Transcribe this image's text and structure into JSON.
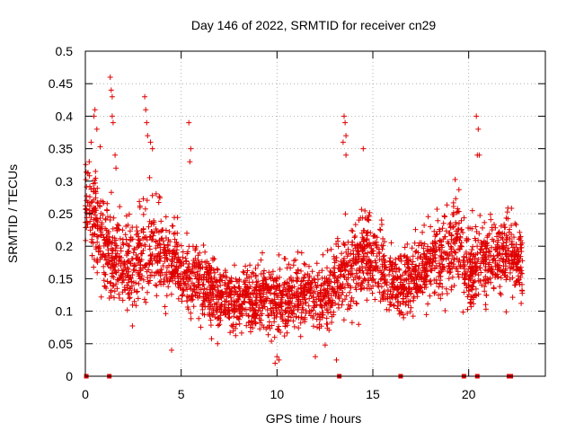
{
  "chart_data": {
    "type": "scatter",
    "title": "Day 146 of 2022, SRMTID for receiver cn29",
    "xlabel": "GPS time / hours",
    "ylabel": "SRMTID / TECUs",
    "xlim": [
      0,
      24
    ],
    "ylim": [
      0,
      0.5
    ],
    "xticks": [
      0,
      5,
      10,
      15,
      20
    ],
    "xtick_labels": [
      "0",
      "5",
      "10",
      "15",
      "20"
    ],
    "yticks": [
      0,
      0.05,
      0.1,
      0.15,
      0.2,
      0.25,
      0.3,
      0.35,
      0.4,
      0.45,
      0.5
    ],
    "ytick_labels": [
      "0",
      "0.05",
      "0.1",
      "0.15",
      "0.2",
      "0.25",
      "0.3",
      "0.35",
      "0.4",
      "0.45",
      "0.5"
    ],
    "grid": true,
    "marker_color": "#e00000",
    "series": [
      {
        "name": "SRMTID",
        "marker": "plus",
        "approx_point_count": 3000,
        "profile_x": [
          0.0,
          0.5,
          1.0,
          1.5,
          2.0,
          2.5,
          3.0,
          3.5,
          4.0,
          4.5,
          5.0,
          5.5,
          6.0,
          6.5,
          7.0,
          7.5,
          8.0,
          8.5,
          9.0,
          9.5,
          10.0,
          10.5,
          11.0,
          11.5,
          12.0,
          12.5,
          13.0,
          13.5,
          14.0,
          14.5,
          15.0,
          15.5,
          16.0,
          16.5,
          17.0,
          17.5,
          18.0,
          18.5,
          19.0,
          19.5,
          20.0,
          20.5,
          21.0,
          21.5,
          22.0,
          22.5,
          22.8
        ],
        "profile_center": [
          0.25,
          0.24,
          0.2,
          0.18,
          0.17,
          0.16,
          0.19,
          0.2,
          0.18,
          0.17,
          0.16,
          0.15,
          0.14,
          0.13,
          0.12,
          0.12,
          0.115,
          0.115,
          0.12,
          0.12,
          0.115,
          0.12,
          0.125,
          0.125,
          0.12,
          0.12,
          0.14,
          0.16,
          0.17,
          0.18,
          0.18,
          0.16,
          0.14,
          0.14,
          0.15,
          0.16,
          0.17,
          0.18,
          0.19,
          0.2,
          0.16,
          0.17,
          0.18,
          0.18,
          0.19,
          0.18,
          0.17
        ],
        "profile_spread": [
          0.07,
          0.07,
          0.07,
          0.06,
          0.06,
          0.06,
          0.07,
          0.07,
          0.06,
          0.05,
          0.05,
          0.05,
          0.045,
          0.045,
          0.045,
          0.04,
          0.04,
          0.04,
          0.04,
          0.045,
          0.045,
          0.05,
          0.045,
          0.045,
          0.045,
          0.045,
          0.05,
          0.06,
          0.06,
          0.06,
          0.055,
          0.05,
          0.05,
          0.045,
          0.045,
          0.05,
          0.055,
          0.055,
          0.06,
          0.06,
          0.06,
          0.05,
          0.05,
          0.05,
          0.05,
          0.05,
          0.045
        ],
        "peak_points": [
          [
            0.2,
            0.33
          ],
          [
            0.3,
            0.36
          ],
          [
            0.45,
            0.4
          ],
          [
            0.5,
            0.41
          ],
          [
            0.6,
            0.38
          ],
          [
            1.3,
            0.46
          ],
          [
            1.35,
            0.44
          ],
          [
            1.4,
            0.43
          ],
          [
            1.4,
            0.4
          ],
          [
            1.45,
            0.39
          ],
          [
            1.55,
            0.34
          ],
          [
            1.6,
            0.32
          ],
          [
            3.1,
            0.43
          ],
          [
            3.15,
            0.41
          ],
          [
            3.2,
            0.39
          ],
          [
            3.25,
            0.37
          ],
          [
            3.4,
            0.36
          ],
          [
            3.5,
            0.35
          ],
          [
            5.4,
            0.39
          ],
          [
            5.5,
            0.35
          ],
          [
            5.45,
            0.33
          ],
          [
            13.5,
            0.4
          ],
          [
            13.55,
            0.39
          ],
          [
            13.6,
            0.37
          ],
          [
            13.45,
            0.36
          ],
          [
            13.6,
            0.34
          ],
          [
            14.5,
            0.35
          ],
          [
            20.4,
            0.4
          ],
          [
            20.5,
            0.38
          ],
          [
            20.45,
            0.34
          ],
          [
            20.55,
            0.34
          ],
          [
            9.9,
            0.02
          ],
          [
            10.0,
            0.03
          ],
          [
            10.1,
            0.025
          ],
          [
            13.1,
            0.025
          ],
          [
            12.0,
            0.03
          ],
          [
            4.5,
            0.04
          ],
          [
            6.9,
            0.05
          ]
        ]
      },
      {
        "name": "zero markers",
        "marker": "square",
        "points": [
          [
            0.05,
            0
          ],
          [
            1.25,
            0
          ],
          [
            13.25,
            0
          ],
          [
            16.45,
            0
          ],
          [
            19.75,
            0
          ],
          [
            20.45,
            0
          ],
          [
            22.1,
            0
          ],
          [
            22.2,
            0
          ]
        ]
      }
    ],
    "legend": "none"
  }
}
